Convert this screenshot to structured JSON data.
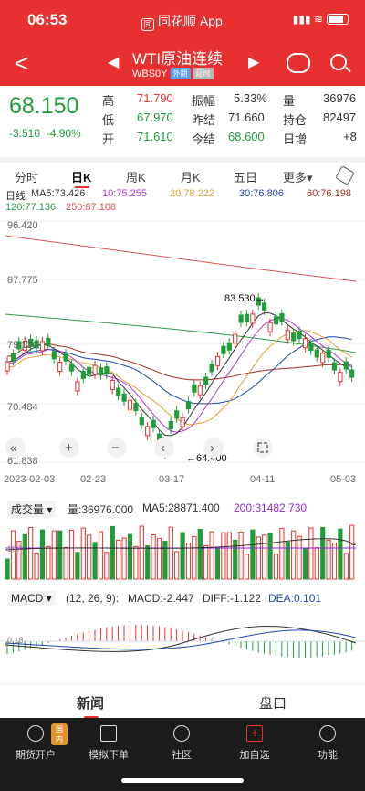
{
  "status": {
    "time": "06:53",
    "app_name": "同花顺 App",
    "logo": "同"
  },
  "nav": {
    "title": "WTI原油连续",
    "code": "WBS0Y",
    "tag_outer": "外期",
    "tag_delay": "延时"
  },
  "quote": {
    "price": "68.150",
    "change": "-3.510",
    "change_pct": "-4.90%",
    "high_label": "高",
    "high": "71.790",
    "low_label": "低",
    "low": "67.970",
    "open_label": "开",
    "open": "71.610",
    "amp_label": "振幅",
    "amp": "5.33%",
    "prev_settle_label": "昨结",
    "prev_settle": "71.660",
    "settle_label": "今结",
    "settle": "68.600",
    "vol_label": "量",
    "vol": "36976",
    "oi_label": "持仓",
    "oi": "82497",
    "oi_chg_label": "日增",
    "oi_chg": "+8"
  },
  "tabs": [
    "分时",
    "日K",
    "周K",
    "月K",
    "五日",
    "更多▾"
  ],
  "ma_header": {
    "label": "日线",
    "ma5": "MA5:73.426",
    "ma10": "10:75.255",
    "ma20": "20:78.222",
    "ma30": "30:76.806",
    "ma60": "60:76.198",
    "ma120": "120:77.136",
    "ma250": "250:87.108"
  },
  "ma_colors": {
    "ma5": "#333333",
    "ma10": "#b03ad6",
    "ma20": "#e0a030",
    "ma30": "#2046b8",
    "ma60": "#a03020",
    "ma120": "#2e9a4a",
    "ma250": "#d9534f"
  },
  "price_axis": [
    "96.420",
    "87.775",
    "79.130",
    "70.484",
    "61.838"
  ],
  "annotations": {
    "high_mark": "83.530→",
    "low_mark": "←64.400"
  },
  "date_axis": [
    "2023-02-03",
    "02-23",
    "03-17",
    "04-11",
    "05-03"
  ],
  "zoom_controls": [
    "«",
    "+",
    "−",
    "‹",
    "›"
  ],
  "volume": {
    "label": "成交量",
    "vol": "量:36976.000",
    "ma5": "MA5:28871.400",
    "ma200": "200:31482.730",
    "axis_mark": "187"
  },
  "macd": {
    "label": "MACD",
    "params": "(12, 26, 9):",
    "macd": "MACD:-2.447",
    "diff": "DIFF:-1.122",
    "dea": "DEA:0.101",
    "axis_mark": "0.18"
  },
  "bottom_tabs": [
    "新闻",
    "盘口"
  ],
  "dock": [
    {
      "label": "期货开户",
      "badge": "国内"
    },
    {
      "label": "模拟下单"
    },
    {
      "label": "社区"
    },
    {
      "label": "加自选"
    },
    {
      "label": "功能"
    }
  ]
}
